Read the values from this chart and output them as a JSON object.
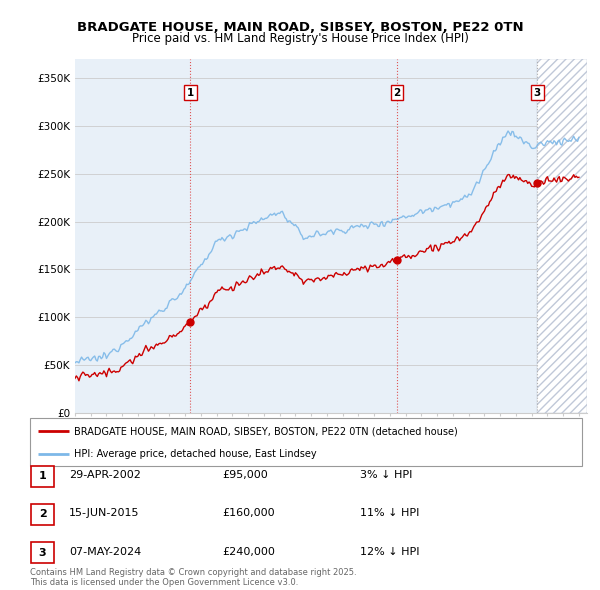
{
  "title": "BRADGATE HOUSE, MAIN ROAD, SIBSEY, BOSTON, PE22 0TN",
  "subtitle": "Price paid vs. HM Land Registry's House Price Index (HPI)",
  "ylim": [
    0,
    370000
  ],
  "yticks": [
    0,
    50000,
    100000,
    150000,
    200000,
    250000,
    300000,
    350000
  ],
  "ytick_labels": [
    "£0",
    "£50K",
    "£100K",
    "£150K",
    "£200K",
    "£250K",
    "£300K",
    "£350K"
  ],
  "xlim_start": 1995.0,
  "xlim_end": 2027.5,
  "hpi_color": "#7db8e8",
  "price_color": "#cc0000",
  "sale_marker_color": "#cc0000",
  "background_color": "#ffffff",
  "chart_bg_color": "#e8f0f8",
  "grid_color": "#cccccc",
  "hatch_color": "#c0c8d8",
  "sales": [
    {
      "year": 2002.33,
      "price": 95000,
      "label": "1",
      "vline_color": "#dd4444",
      "vline_style": "dotted"
    },
    {
      "year": 2015.45,
      "price": 160000,
      "label": "2",
      "vline_color": "#dd4444",
      "vline_style": "dotted"
    },
    {
      "year": 2024.36,
      "price": 240000,
      "label": "3",
      "vline_color": "#aaaaaa",
      "vline_style": "dotted"
    }
  ],
  "legend_house": "BRADGATE HOUSE, MAIN ROAD, SIBSEY, BOSTON, PE22 0TN (detached house)",
  "legend_hpi": "HPI: Average price, detached house, East Lindsey",
  "table_rows": [
    {
      "num": "1",
      "date": "29-APR-2002",
      "price": "£95,000",
      "hpi": "3% ↓ HPI"
    },
    {
      "num": "2",
      "date": "15-JUN-2015",
      "price": "£160,000",
      "hpi": "11% ↓ HPI"
    },
    {
      "num": "3",
      "date": "07-MAY-2024",
      "price": "£240,000",
      "hpi": "12% ↓ HPI"
    }
  ],
  "footer": "Contains HM Land Registry data © Crown copyright and database right 2025.\nThis data is licensed under the Open Government Licence v3.0.",
  "title_fontsize": 9.5,
  "subtitle_fontsize": 8.5,
  "tick_fontsize": 7.5
}
